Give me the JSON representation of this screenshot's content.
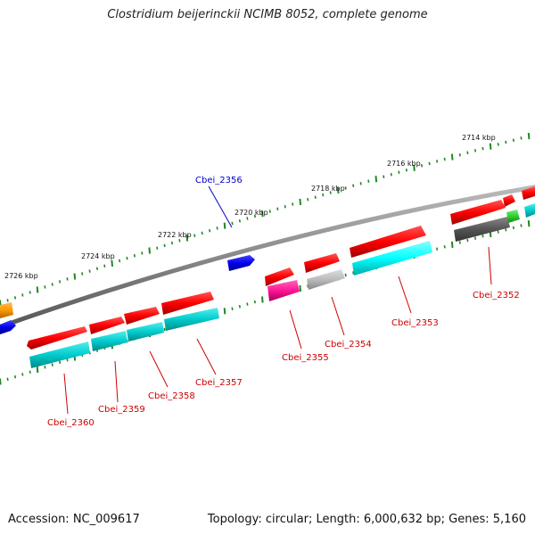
{
  "title": "Clostridium beijerinckii NCIMB 8052, complete genome",
  "accession": "Accession: NC_009617",
  "topology": "Topology: circular; Length: 6,000,632 bp; Genes: 5,160",
  "kbp_labels": [
    "2714 kbp",
    "2716 kbp",
    "2718 kbp",
    "2720 kbp",
    "2722 kbp",
    "2724 kbp",
    "2726 kbp"
  ],
  "gene_labels": [
    {
      "name": "Cbei_2352",
      "color": "#cc0000"
    },
    {
      "name": "Cbei_2353",
      "color": "#cc0000"
    },
    {
      "name": "Cbei_2354",
      "color": "#cc0000"
    },
    {
      "name": "Cbei_2355",
      "color": "#cc0000"
    },
    {
      "name": "Cbei_2356",
      "color": "#0000cc"
    },
    {
      "name": "Cbei_2357",
      "color": "#cc0000"
    },
    {
      "name": "Cbei_2358",
      "color": "#cc0000"
    },
    {
      "name": "Cbei_2359",
      "color": "#cc0000"
    },
    {
      "name": "Cbei_2360",
      "color": "#cc0000"
    }
  ],
  "colors": {
    "cds": "#ff0000",
    "gene": "#00cccc",
    "gene_bright": "#00ffff",
    "blue_gene": "#0000ee",
    "pink_gene": "#ff1493",
    "grey_gene": "#bbbbbb",
    "dark_gene": "#555555",
    "green_gene": "#33cc33",
    "orange_gene": "#ff9900",
    "backbone": "#888888",
    "ticks": "#228822"
  }
}
